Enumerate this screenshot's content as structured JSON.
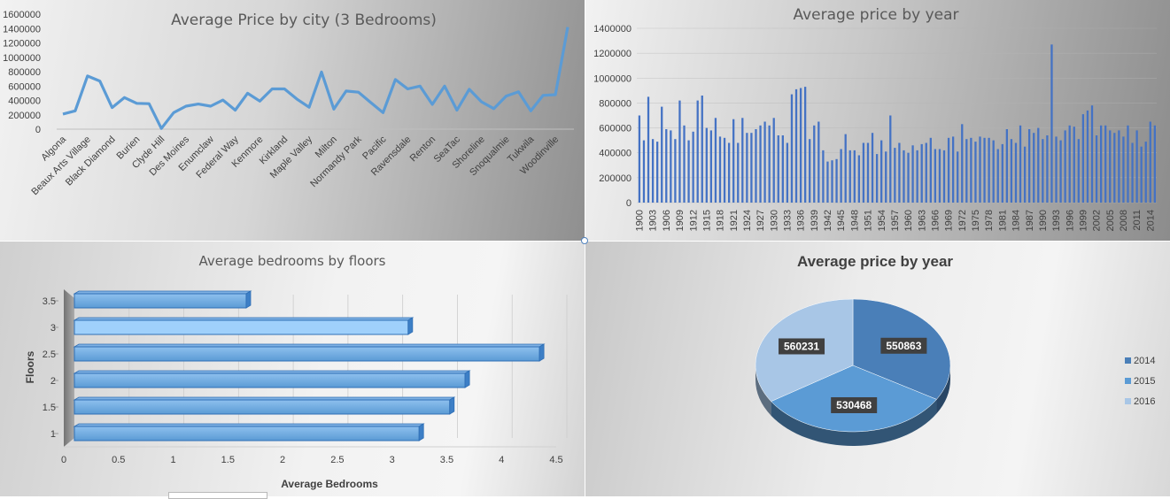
{
  "chart_data": [
    {
      "type": "line",
      "title": "Average Price by city (3 Bedrooms)",
      "xlabel": "",
      "ylabel": "",
      "ylim": [
        0,
        1600000
      ],
      "y_ticks": [
        "0",
        "200000",
        "400000",
        "600000",
        "800000",
        "1000000",
        "1200000",
        "1400000",
        "1600000"
      ],
      "categories": [
        "Algona",
        "",
        "Beaux Arts Village",
        "",
        "Black Diamond",
        "",
        "Burien",
        "",
        "Clyde Hill",
        "",
        "Des Moines",
        "",
        "Enumclaw",
        "",
        "Federal Way",
        "",
        "Kenmore",
        "",
        "Kirkland",
        "",
        "Maple Valley",
        "",
        "Milton",
        "",
        "Normandy Park",
        "",
        "Pacific",
        "",
        "Ravensdale",
        "",
        "Renton",
        "",
        "SeaTac",
        "",
        "Shoreline",
        "",
        "Snoqualmie",
        "",
        "Tukwila",
        "",
        "Woodinville",
        ""
      ],
      "values": [
        210000,
        255000,
        740000,
        670000,
        300000,
        440000,
        360000,
        355000,
        10000,
        230000,
        320000,
        350000,
        320000,
        405000,
        265000,
        500000,
        390000,
        560000,
        560000,
        420000,
        305000,
        795000,
        280000,
        530000,
        515000,
        370000,
        230000,
        690000,
        560000,
        600000,
        345000,
        600000,
        265000,
        555000,
        380000,
        285000,
        460000,
        520000,
        255000,
        470000,
        480000,
        1420000
      ],
      "grid": false,
      "color": "#5b9bd5"
    },
    {
      "type": "bar",
      "title": "Average price by year",
      "xlabel": "",
      "ylabel": "",
      "ylim": [
        0,
        1400000
      ],
      "y_ticks": [
        "0",
        "200000",
        "400000",
        "600000",
        "800000",
        "1000000",
        "1200000",
        "1400000"
      ],
      "x_tick_labels": [
        "1900",
        "1903",
        "1906",
        "1909",
        "1912",
        "1915",
        "1918",
        "1921",
        "1924",
        "1927",
        "1930",
        "1933",
        "1936",
        "1939",
        "1942",
        "1945",
        "1948",
        "1951",
        "1954",
        "1957",
        "1960",
        "1963",
        "1966",
        "1969",
        "1972",
        "1975",
        "1978",
        "1981",
        "1984",
        "1987",
        "1990",
        "1993",
        "1996",
        "1999",
        "2002",
        "2005",
        "2008",
        "2011",
        "2014"
      ],
      "x_start": 1900,
      "values": [
        700000,
        500000,
        850000,
        510000,
        490000,
        770000,
        590000,
        580000,
        510000,
        820000,
        620000,
        500000,
        570000,
        820000,
        860000,
        600000,
        580000,
        680000,
        530000,
        520000,
        480000,
        670000,
        480000,
        680000,
        560000,
        560000,
        590000,
        620000,
        650000,
        620000,
        680000,
        540000,
        540000,
        480000,
        870000,
        910000,
        920000,
        930000,
        510000,
        620000,
        650000,
        420000,
        330000,
        340000,
        350000,
        430000,
        550000,
        420000,
        420000,
        380000,
        480000,
        480000,
        560000,
        390000,
        500000,
        410000,
        700000,
        440000,
        480000,
        420000,
        400000,
        460000,
        420000,
        470000,
        480000,
        520000,
        430000,
        430000,
        420000,
        520000,
        530000,
        410000,
        630000,
        510000,
        520000,
        490000,
        530000,
        520000,
        520000,
        500000,
        430000,
        470000,
        590000,
        510000,
        480000,
        620000,
        450000,
        590000,
        560000,
        600000,
        510000,
        540000,
        1270000,
        530000,
        500000,
        580000,
        620000,
        610000,
        510000,
        710000,
        740000,
        780000,
        540000,
        620000,
        620000,
        580000,
        560000,
        580000,
        530000,
        620000,
        480000,
        580000,
        450000,
        490000,
        650000,
        620000
      ],
      "grid": true,
      "color": "#4472c4"
    },
    {
      "type": "bar",
      "orientation": "horizontal",
      "title": "Average bedrooms by floors",
      "xlabel": "Average Bedrooms",
      "ylabel": "Floors",
      "xlim": [
        0,
        4.5
      ],
      "x_ticks": [
        "0",
        "0.5",
        "1",
        "1.5",
        "2",
        "2.5",
        "3",
        "3.5",
        "4",
        "4.5"
      ],
      "categories": [
        "1",
        "1.5",
        "2",
        "2.5",
        "3",
        "3.5"
      ],
      "values": [
        3.15,
        3.43,
        3.57,
        4.25,
        3.05,
        1.57
      ],
      "grid": true,
      "color": "#5b9bd5"
    },
    {
      "type": "pie",
      "title": "Average price by year",
      "legend": "right",
      "slices": [
        {
          "label": "2014",
          "value": 550863,
          "color": "#4a7fb8"
        },
        {
          "label": "2015",
          "value": 530468,
          "color": "#5b9bd5"
        },
        {
          "label": "2016",
          "value": 560231,
          "color": "#a8c6e6"
        }
      ]
    }
  ]
}
